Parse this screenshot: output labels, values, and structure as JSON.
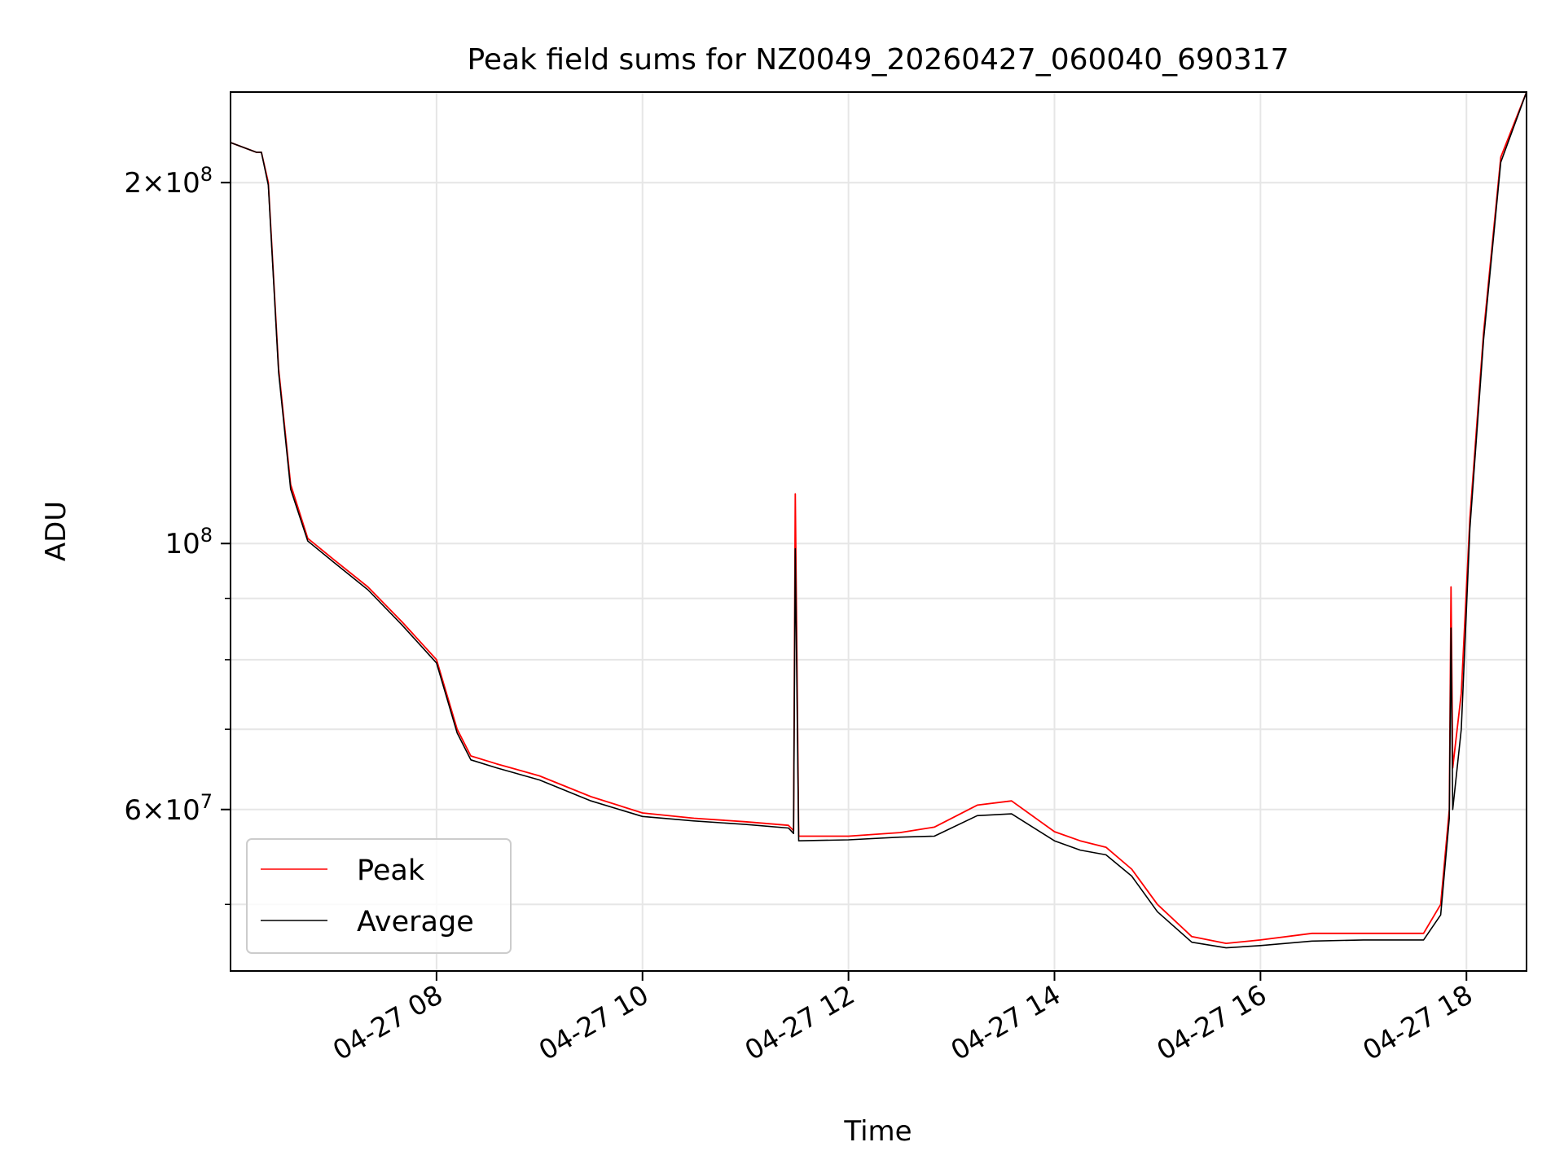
{
  "chart_data": {
    "type": "line",
    "title": "Peak field sums for NZ0049_20260427_060040_690317",
    "xlabel": "Time",
    "ylabel": "ADU",
    "x_scale": "time",
    "y_scale": "log",
    "xlim": [
      "2026-04-27 06:00",
      "2026-04-27 18:35"
    ],
    "ylim": [
      44000000,
      238000000
    ],
    "x_ticks": [
      {
        "value": "2026-04-27 08:00",
        "label": "04-27 08"
      },
      {
        "value": "2026-04-27 10:00",
        "label": "04-27 10"
      },
      {
        "value": "2026-04-27 12:00",
        "label": "04-27 12"
      },
      {
        "value": "2026-04-27 14:00",
        "label": "04-27 14"
      },
      {
        "value": "2026-04-27 16:00",
        "label": "04-27 16"
      },
      {
        "value": "2026-04-27 18:00",
        "label": "04-27 18"
      }
    ],
    "y_ticks": [
      {
        "value": 200000000,
        "mant": "2",
        "exp": "8"
      },
      {
        "value": 100000000,
        "mant": "",
        "exp": "8"
      },
      {
        "value": 60000000,
        "mant": "6",
        "exp": "7"
      }
    ],
    "y_minor_ticks": [
      50000000,
      70000000,
      80000000,
      90000000
    ],
    "grid": true,
    "legend": {
      "position": "lower-left",
      "entries": [
        "Peak",
        "Average"
      ]
    },
    "series": [
      {
        "name": "Peak",
        "color": "#ff0000",
        "x": [
          "2026-04-27 06:00",
          "2026-04-27 06:15",
          "2026-04-27 06:18",
          "2026-04-27 06:22",
          "2026-04-27 06:28",
          "2026-04-27 06:35",
          "2026-04-27 06:45",
          "2026-04-27 07:00",
          "2026-04-27 07:20",
          "2026-04-27 07:40",
          "2026-04-27 08:00",
          "2026-04-27 08:12",
          "2026-04-27 08:20",
          "2026-04-27 08:35",
          "2026-04-27 09:00",
          "2026-04-27 09:30",
          "2026-04-27 10:00",
          "2026-04-27 10:30",
          "2026-04-27 11:00",
          "2026-04-27 11:25",
          "2026-04-27 11:28",
          "2026-04-27 11:29",
          "2026-04-27 11:31",
          "2026-04-27 12:00",
          "2026-04-27 12:30",
          "2026-04-27 12:50",
          "2026-04-27 13:15",
          "2026-04-27 13:35",
          "2026-04-27 14:00",
          "2026-04-27 14:15",
          "2026-04-27 14:30",
          "2026-04-27 14:45",
          "2026-04-27 15:00",
          "2026-04-27 15:20",
          "2026-04-27 15:40",
          "2026-04-27 16:00",
          "2026-04-27 16:30",
          "2026-04-27 17:00",
          "2026-04-27 17:20",
          "2026-04-27 17:35",
          "2026-04-27 17:45",
          "2026-04-27 17:50",
          "2026-04-27 17:51",
          "2026-04-27 17:52",
          "2026-04-27 17:57",
          "2026-04-27 18:02",
          "2026-04-27 18:10",
          "2026-04-27 18:20",
          "2026-04-27 18:35"
        ],
        "y": [
          216000000,
          212000000,
          212000000,
          200000000,
          140000000,
          112000000,
          101000000,
          97000000,
          92000000,
          86000000,
          80000000,
          70000000,
          66500000,
          65500000,
          64000000,
          61500000,
          59600000,
          59000000,
          58600000,
          58200000,
          57600000,
          110000000,
          57000000,
          57000000,
          57400000,
          58000000,
          60500000,
          61000000,
          57500000,
          56500000,
          55800000,
          53500000,
          50000000,
          47000000,
          46400000,
          46700000,
          47300000,
          47300000,
          47300000,
          47300000,
          50000000,
          60000000,
          92000000,
          65000000,
          75000000,
          105000000,
          150000000,
          210000000,
          238000000
        ]
      },
      {
        "name": "Average",
        "color": "#000000",
        "x": [
          "2026-04-27 06:00",
          "2026-04-27 06:15",
          "2026-04-27 06:18",
          "2026-04-27 06:22",
          "2026-04-27 06:28",
          "2026-04-27 06:35",
          "2026-04-27 06:45",
          "2026-04-27 07:00",
          "2026-04-27 07:20",
          "2026-04-27 07:40",
          "2026-04-27 08:00",
          "2026-04-27 08:12",
          "2026-04-27 08:20",
          "2026-04-27 08:35",
          "2026-04-27 09:00",
          "2026-04-27 09:30",
          "2026-04-27 10:00",
          "2026-04-27 10:30",
          "2026-04-27 11:00",
          "2026-04-27 11:25",
          "2026-04-27 11:28",
          "2026-04-27 11:29",
          "2026-04-27 11:31",
          "2026-04-27 12:00",
          "2026-04-27 12:30",
          "2026-04-27 12:50",
          "2026-04-27 13:15",
          "2026-04-27 13:35",
          "2026-04-27 14:00",
          "2026-04-27 14:15",
          "2026-04-27 14:30",
          "2026-04-27 14:45",
          "2026-04-27 15:00",
          "2026-04-27 15:20",
          "2026-04-27 15:40",
          "2026-04-27 16:00",
          "2026-04-27 16:30",
          "2026-04-27 17:00",
          "2026-04-27 17:20",
          "2026-04-27 17:35",
          "2026-04-27 17:45",
          "2026-04-27 17:50",
          "2026-04-27 17:51",
          "2026-04-27 17:52",
          "2026-04-27 17:57",
          "2026-04-27 18:02",
          "2026-04-27 18:10",
          "2026-04-27 18:20",
          "2026-04-27 18:35"
        ],
        "y": [
          216000000,
          212000000,
          212000000,
          199000000,
          139000000,
          111000000,
          100500000,
          96500000,
          91500000,
          85500000,
          79500000,
          69500000,
          66000000,
          65000000,
          63500000,
          61000000,
          59200000,
          58700000,
          58300000,
          57900000,
          57300000,
          99000000,
          56500000,
          56600000,
          56900000,
          57000000,
          59300000,
          59500000,
          56500000,
          55500000,
          55000000,
          52800000,
          49300000,
          46500000,
          46000000,
          46200000,
          46600000,
          46700000,
          46700000,
          46700000,
          49000000,
          59000000,
          85000000,
          60000000,
          70000000,
          103000000,
          148000000,
          208000000,
          238000000
        ]
      }
    ]
  }
}
